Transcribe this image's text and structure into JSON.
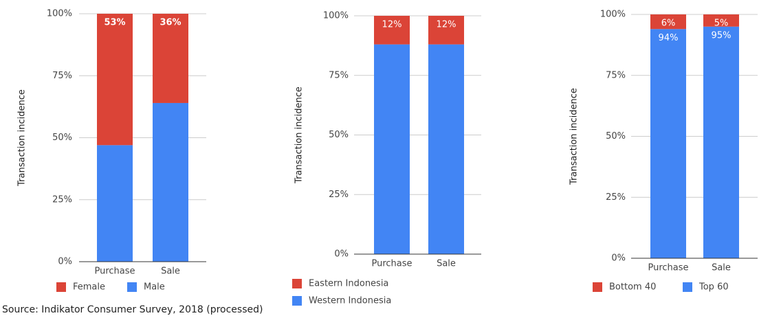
{
  "chart_data": [
    {
      "type": "bar",
      "stacked": true,
      "y_label": "Transaction incidence",
      "categories": [
        "Purchase",
        "Sale"
      ],
      "series": [
        {
          "name": "Female",
          "color": "#db4437",
          "values": [
            53,
            36
          ],
          "value_labels": [
            "53%",
            "36%"
          ]
        },
        {
          "name": "Male",
          "color": "#4285f4",
          "values": [
            47,
            64
          ]
        }
      ],
      "ylim": [
        0,
        100
      ],
      "yticks": [
        {
          "value": 0,
          "label": "0%"
        },
        {
          "value": 25,
          "label": "25%"
        },
        {
          "value": 50,
          "label": "50%"
        },
        {
          "value": 75,
          "label": "75%"
        },
        {
          "value": 100,
          "label": "100%"
        }
      ],
      "grid": true
    },
    {
      "type": "bar",
      "stacked": true,
      "y_label": "Transaction incidence",
      "categories": [
        "Purchase",
        "Sale"
      ],
      "series": [
        {
          "name": "Eastern Indonesia",
          "color": "#db4437",
          "values": [
            12,
            12
          ],
          "value_labels": [
            "12%",
            "12%"
          ]
        },
        {
          "name": "Western Indonesia",
          "color": "#4285f4",
          "values": [
            88,
            88
          ]
        }
      ],
      "ylim": [
        0,
        100
      ],
      "yticks": [
        {
          "value": 0,
          "label": "0%"
        },
        {
          "value": 25,
          "label": "25%"
        },
        {
          "value": 50,
          "label": "50%"
        },
        {
          "value": 75,
          "label": "75%"
        },
        {
          "value": 100,
          "label": "100%"
        }
      ],
      "grid": true
    },
    {
      "type": "bar",
      "stacked": true,
      "y_label": "Transaction incidence",
      "categories": [
        "Purchase",
        "Sale"
      ],
      "series": [
        {
          "name": "Bottom 40",
          "color": "#db4437",
          "values": [
            6,
            5
          ],
          "value_labels": [
            "6%",
            "5%"
          ]
        },
        {
          "name": "Top 60",
          "color": "#4285f4",
          "values": [
            94,
            95
          ],
          "value_labels": [
            "94%",
            "95%"
          ]
        }
      ],
      "ylim": [
        0,
        100
      ],
      "yticks": [
        {
          "value": 0,
          "label": "0%"
        },
        {
          "value": 25,
          "label": "25%"
        },
        {
          "value": 50,
          "label": "50%"
        },
        {
          "value": 75,
          "label": "75%"
        },
        {
          "value": 100,
          "label": "100%"
        }
      ],
      "grid": true
    }
  ],
  "source": "Source: Indikator Consumer Survey, 2018 (processed)"
}
